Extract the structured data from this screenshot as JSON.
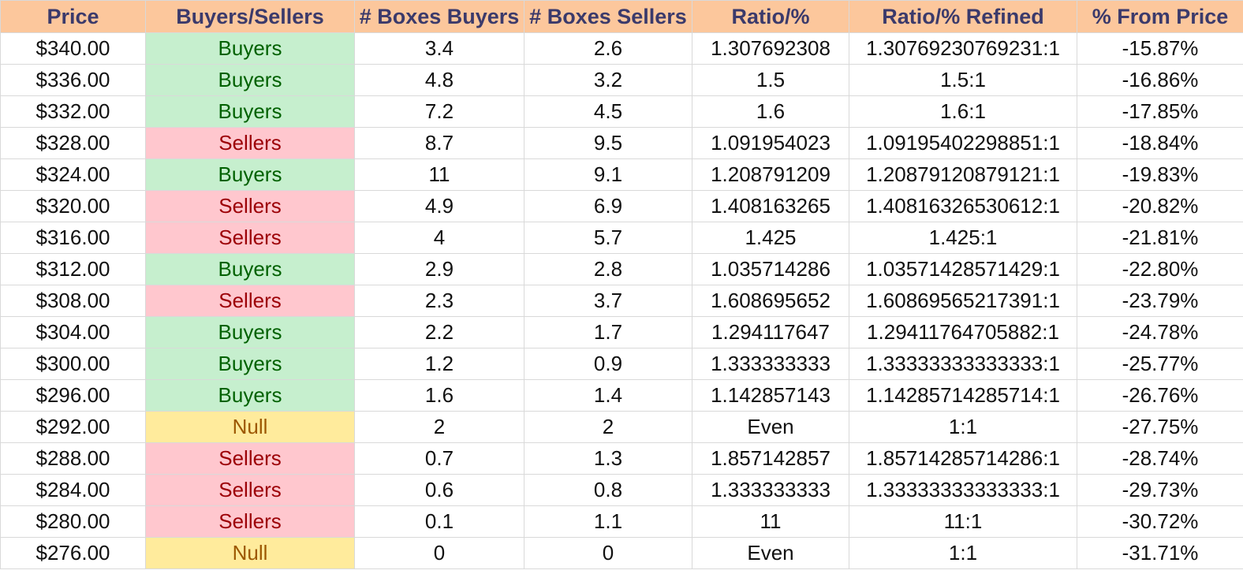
{
  "headers": [
    "Price",
    "Buyers/Sellers",
    "# Boxes Buyers",
    "# Boxes Sellers",
    "Ratio/%",
    "Ratio/% Refined",
    "% From Price"
  ],
  "status_colors": {
    "buyers_bg": "#c6efce",
    "buyers_fg": "#006100",
    "sellers_bg": "#ffc7ce",
    "sellers_fg": "#9c0006",
    "null_bg": "#ffeb9c",
    "null_fg": "#9c5700",
    "header_bg": "#fcc79c",
    "header_fg": "#3b3a6b"
  },
  "rows": [
    [
      "$340.00",
      "Buyers",
      "3.4",
      "2.6",
      "1.307692308",
      "1.30769230769231:1",
      "-15.87%"
    ],
    [
      "$336.00",
      "Buyers",
      "4.8",
      "3.2",
      "1.5",
      "1.5:1",
      "-16.86%"
    ],
    [
      "$332.00",
      "Buyers",
      "7.2",
      "4.5",
      "1.6",
      "1.6:1",
      "-17.85%"
    ],
    [
      "$328.00",
      "Sellers",
      "8.7",
      "9.5",
      "1.091954023",
      "1.09195402298851:1",
      "-18.84%"
    ],
    [
      "$324.00",
      "Buyers",
      "11",
      "9.1",
      "1.208791209",
      "1.20879120879121:1",
      "-19.83%"
    ],
    [
      "$320.00",
      "Sellers",
      "4.9",
      "6.9",
      "1.408163265",
      "1.40816326530612:1",
      "-20.82%"
    ],
    [
      "$316.00",
      "Sellers",
      "4",
      "5.7",
      "1.425",
      "1.425:1",
      "-21.81%"
    ],
    [
      "$312.00",
      "Buyers",
      "2.9",
      "2.8",
      "1.035714286",
      "1.03571428571429:1",
      "-22.80%"
    ],
    [
      "$308.00",
      "Sellers",
      "2.3",
      "3.7",
      "1.608695652",
      "1.60869565217391:1",
      "-23.79%"
    ],
    [
      "$304.00",
      "Buyers",
      "2.2",
      "1.7",
      "1.294117647",
      "1.29411764705882:1",
      "-24.78%"
    ],
    [
      "$300.00",
      "Buyers",
      "1.2",
      "0.9",
      "1.333333333",
      "1.33333333333333:1",
      "-25.77%"
    ],
    [
      "$296.00",
      "Buyers",
      "1.6",
      "1.4",
      "1.142857143",
      "1.14285714285714:1",
      "-26.76%"
    ],
    [
      "$292.00",
      "Null",
      "2",
      "2",
      "Even",
      "1:1",
      "-27.75%"
    ],
    [
      "$288.00",
      "Sellers",
      "0.7",
      "1.3",
      "1.857142857",
      "1.85714285714286:1",
      "-28.74%"
    ],
    [
      "$284.00",
      "Sellers",
      "0.6",
      "0.8",
      "1.333333333",
      "1.33333333333333:1",
      "-29.73%"
    ],
    [
      "$280.00",
      "Sellers",
      "0.1",
      "1.1",
      "11",
      "11:1",
      "-30.72%"
    ],
    [
      "$276.00",
      "Null",
      "0",
      "0",
      "Even",
      "1:1",
      "-31.71%"
    ]
  ]
}
